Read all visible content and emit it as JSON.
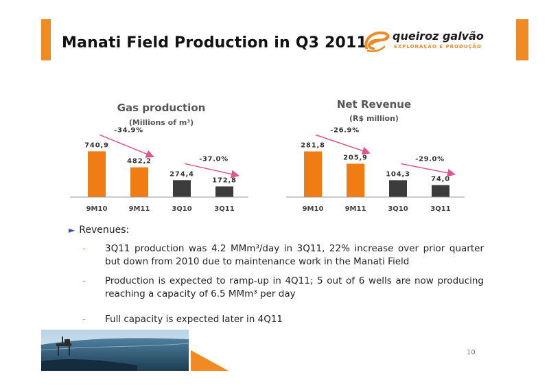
{
  "header": {
    "title": "Manati Field Production in Q3 2011",
    "logo_name": "queiroz galvão",
    "logo_tagline": "EXPLORAÇÃO E PRODUÇÃO",
    "logo_icon": "qg-swirl-logo"
  },
  "colors": {
    "accent": "#f08a24",
    "bar_orange": "#f07c14",
    "bar_dark": "#3c3c3c",
    "arrow": "#e2548f"
  },
  "chart_data": [
    {
      "type": "bar",
      "title": "Gas production",
      "subtitle": "(Millions of m³)",
      "categories": [
        "9M10",
        "9M11",
        "3Q10",
        "3Q11"
      ],
      "values": [
        740.9,
        482.2,
        274.4,
        172.8
      ],
      "value_labels": [
        "740,9",
        "482,2",
        "274,4",
        "172,8"
      ],
      "bar_colors": [
        "orange",
        "orange",
        "dark",
        "dark"
      ],
      "annotations": [
        "-34.9%",
        "-37.0%"
      ],
      "ylim": [
        0,
        800
      ]
    },
    {
      "type": "bar",
      "title": "Net Revenue",
      "subtitle": "(R$ million)",
      "categories": [
        "9M10",
        "9M11",
        "3Q10",
        "3Q11"
      ],
      "values": [
        281.8,
        205.9,
        104.3,
        74.0
      ],
      "value_labels": [
        "281,8",
        "205,9",
        "104,3",
        "74,0"
      ],
      "bar_colors": [
        "orange",
        "orange",
        "dark",
        "dark"
      ],
      "annotations": [
        "-26.9%",
        "-29.0%"
      ],
      "ylim": [
        0,
        305
      ]
    }
  ],
  "body": {
    "bullet": "Revenues:",
    "items": [
      {
        "dash": "-",
        "text": "3Q11 production was 4.2 MMm³/day in 3Q11, 22% increase over prior quarter but down from 2010 due to maintenance work in the Manati Field"
      },
      {
        "dash": "-",
        "text": "Production is expected to ramp-up in 4Q11; 5 out of 6 wells are now producing reaching a capacity of 6.5 MMm³ per day"
      },
      {
        "dash": "-",
        "text": "Full capacity is expected later in 4Q11"
      }
    ]
  },
  "footer": {
    "page_number": "10",
    "photo": "offshore-platform-image"
  }
}
